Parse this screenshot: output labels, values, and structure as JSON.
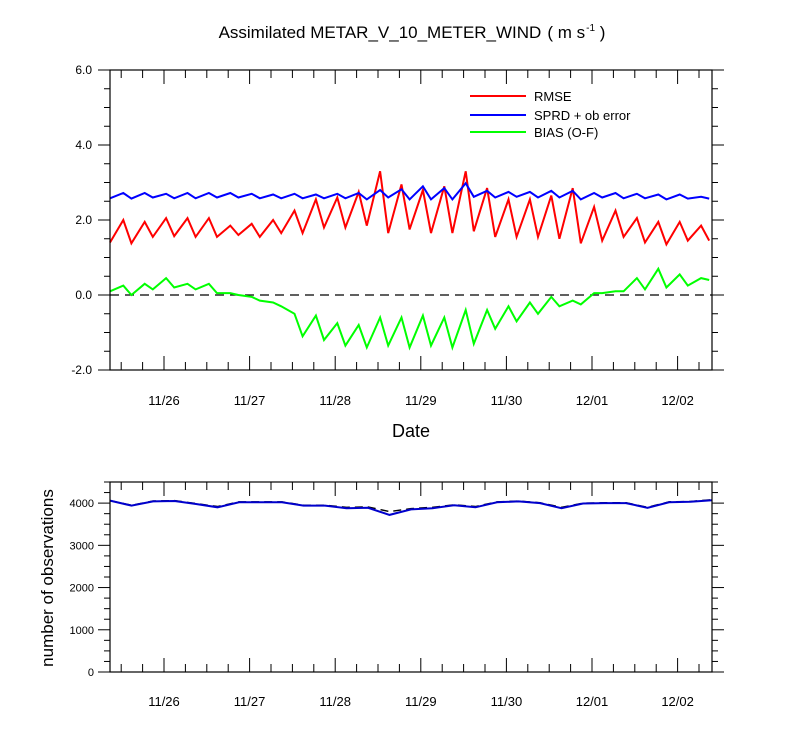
{
  "colors": {
    "rmse": "#ff0000",
    "sprd": "#0000ff",
    "bias": "#00ff00",
    "axis": "#000000",
    "obs_used": "#0000cc",
    "obs_assimilated": "#000000"
  },
  "chart_data": [
    {
      "type": "line",
      "title": "Assimilated METAR_V_10_METER_WIND",
      "title_units": "( m s",
      "title_exponent": "-1",
      "title_close": " )",
      "xlabel": "Date",
      "ylabel": "",
      "x_tick_labels": [
        "11/26",
        "11/27",
        "11/28",
        "11/29",
        "11/30",
        "12/01",
        "12/02"
      ],
      "xlim": [
        "11/25 13:00",
        "12/02 16:00"
      ],
      "ylim": [
        -2.0,
        6.0
      ],
      "y_tick_labels": [
        "-2.0",
        "0.0",
        "2.0",
        "4.0",
        "6.0"
      ],
      "zero_line": "dashed",
      "grid": false,
      "legend": "top-right",
      "series": [
        {
          "name": "RMSE",
          "color": "#ff0000",
          "style": "sawtooth",
          "values": [
            [
              1.4,
              2.0
            ],
            [
              1.38,
              1.95
            ],
            [
              1.55,
              2.05
            ],
            [
              1.57,
              2.05
            ],
            [
              1.55,
              2.05
            ],
            [
              1.55,
              1.85
            ],
            [
              1.6,
              1.9
            ],
            [
              1.55,
              2.0
            ],
            [
              1.65,
              2.25
            ],
            [
              1.65,
              2.55
            ],
            [
              1.8,
              2.6
            ],
            [
              1.8,
              2.75
            ],
            [
              1.85,
              3.3
            ],
            [
              1.65,
              2.95
            ],
            [
              1.75,
              2.8
            ],
            [
              1.65,
              2.9
            ],
            [
              1.65,
              3.3
            ],
            [
              1.7,
              2.85
            ],
            [
              1.55,
              2.55
            ],
            [
              1.55,
              2.55
            ],
            [
              1.55,
              2.65
            ],
            [
              1.5,
              2.85
            ],
            [
              1.38,
              2.35
            ],
            [
              1.45,
              2.25
            ],
            [
              1.55,
              2.05
            ],
            [
              1.4,
              1.95
            ],
            [
              1.35,
              1.95
            ],
            [
              1.45,
              1.85
            ]
          ]
        },
        {
          "name": "SPRD + ob error",
          "color": "#0000ff",
          "style": "sawtooth",
          "values": [
            [
              2.58,
              2.72
            ],
            [
              2.57,
              2.72
            ],
            [
              2.6,
              2.7
            ],
            [
              2.58,
              2.72
            ],
            [
              2.58,
              2.72
            ],
            [
              2.6,
              2.72
            ],
            [
              2.6,
              2.7
            ],
            [
              2.58,
              2.68
            ],
            [
              2.58,
              2.7
            ],
            [
              2.58,
              2.68
            ],
            [
              2.58,
              2.7
            ],
            [
              2.58,
              2.72
            ],
            [
              2.55,
              2.8
            ],
            [
              2.6,
              2.82
            ],
            [
              2.55,
              2.9
            ],
            [
              2.55,
              2.85
            ],
            [
              2.55,
              2.98
            ],
            [
              2.62,
              2.78
            ],
            [
              2.6,
              2.75
            ],
            [
              2.62,
              2.75
            ],
            [
              2.6,
              2.78
            ],
            [
              2.6,
              2.78
            ],
            [
              2.55,
              2.72
            ],
            [
              2.6,
              2.72
            ],
            [
              2.58,
              2.7
            ],
            [
              2.58,
              2.68
            ],
            [
              2.55,
              2.68
            ],
            [
              2.57,
              2.62
            ]
          ]
        },
        {
          "name": "BIAS (O-F)",
          "color": "#00ff00",
          "style": "sawtooth",
          "values": [
            [
              0.1,
              0.25
            ],
            [
              0.0,
              0.3
            ],
            [
              0.15,
              0.45
            ],
            [
              0.2,
              0.3
            ],
            [
              0.15,
              0.3
            ],
            [
              0.05,
              0.05
            ],
            [
              0.0,
              -0.05
            ],
            [
              -0.15,
              -0.2
            ],
            [
              -0.3,
              -0.5
            ],
            [
              -1.1,
              -0.55
            ],
            [
              -1.2,
              -0.75
            ],
            [
              -1.35,
              -0.8
            ],
            [
              -1.4,
              -0.6
            ],
            [
              -1.35,
              -0.6
            ],
            [
              -1.4,
              -0.55
            ],
            [
              -1.35,
              -0.6
            ],
            [
              -1.4,
              -0.4
            ],
            [
              -1.3,
              -0.4
            ],
            [
              -0.9,
              -0.3
            ],
            [
              -0.7,
              -0.2
            ],
            [
              -0.5,
              -0.05
            ],
            [
              -0.3,
              -0.15
            ],
            [
              -0.25,
              0.05
            ],
            [
              0.05,
              0.1
            ],
            [
              0.1,
              0.45
            ],
            [
              0.15,
              0.7
            ],
            [
              0.2,
              0.55
            ],
            [
              0.25,
              0.45
            ]
          ],
          "final": 0.4
        }
      ]
    },
    {
      "type": "line",
      "title": "",
      "xlabel": "",
      "ylabel": "number of observations",
      "x_tick_labels": [
        "11/26",
        "11/27",
        "11/28",
        "11/29",
        "11/30",
        "12/01",
        "12/02"
      ],
      "xlim": [
        "11/25 13:00",
        "12/02 16:00"
      ],
      "ylim": [
        0,
        4500
      ],
      "y_tick_labels": [
        "0",
        "1000",
        "2000",
        "3000",
        "4000"
      ],
      "grid": false,
      "series": [
        {
          "color": "#000000",
          "dashed": true,
          "values": [
            4060,
            3950,
            4050,
            4060,
            3990,
            3920,
            4030,
            4030,
            4030,
            3950,
            3950,
            3900,
            3910,
            3800,
            3870,
            3900,
            3960,
            3920,
            4030,
            4050,
            4010,
            3900,
            4000,
            4010,
            4010,
            3900,
            4030,
            4040,
            4080
          ]
        },
        {
          "color": "#0000cc",
          "dashed": false,
          "values": [
            4060,
            3940,
            4040,
            4050,
            3980,
            3900,
            4020,
            4020,
            4020,
            3940,
            3940,
            3880,
            3890,
            3720,
            3850,
            3880,
            3950,
            3900,
            4020,
            4040,
            4000,
            3880,
            3990,
            4000,
            4000,
            3890,
            4020,
            4030,
            4070
          ]
        }
      ]
    }
  ]
}
